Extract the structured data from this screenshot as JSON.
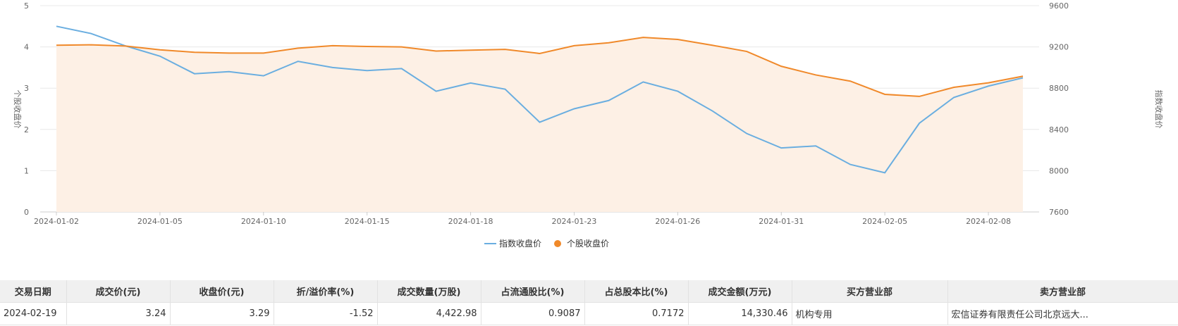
{
  "chart_data": {
    "type": "line",
    "x": [
      "2024-01-02",
      "2024-01-03",
      "2024-01-04",
      "2024-01-05",
      "2024-01-08",
      "2024-01-09",
      "2024-01-10",
      "2024-01-11",
      "2024-01-12",
      "2024-01-15",
      "2024-01-16",
      "2024-01-17",
      "2024-01-18",
      "2024-01-19",
      "2024-01-22",
      "2024-01-23",
      "2024-01-24",
      "2024-01-25",
      "2024-01-26",
      "2024-01-29",
      "2024-01-30",
      "2024-01-31",
      "2024-02-01",
      "2024-02-02",
      "2024-02-05",
      "2024-02-06",
      "2024-02-07",
      "2024-02-08",
      "2024-02-19"
    ],
    "x_ticks": [
      "2024-01-02",
      "2024-01-05",
      "2024-01-10",
      "2024-01-15",
      "2024-01-18",
      "2024-01-23",
      "2024-01-26",
      "2024-01-31",
      "2024-02-05",
      "2024-02-08"
    ],
    "ylabel": "个股收盘价",
    "ylabel_right": "指数收盘价",
    "ylim": [
      0,
      5
    ],
    "ylim_right": [
      7600,
      9600
    ],
    "y_ticks": [
      "0",
      "1",
      "2",
      "3",
      "4",
      "5"
    ],
    "y_ticks_right": [
      "7600",
      "8000",
      "8400",
      "8800",
      "9200",
      "9600"
    ],
    "legend_position": "bottom",
    "grid": true,
    "series": [
      {
        "name": "指数收盘价",
        "axis": "right",
        "color": "#6aaee0",
        "values": [
          9400,
          9330,
          9210,
          9110,
          8940,
          8960,
          8920,
          9060,
          9000,
          8970,
          8990,
          8770,
          8850,
          8790,
          8470,
          8600,
          8680,
          8860,
          8770,
          8580,
          8360,
          8220,
          8240,
          8060,
          7980,
          8460,
          8710,
          8820,
          8900
        ]
      },
      {
        "name": "个股收盘价",
        "axis": "left",
        "color": "#f0892a",
        "area_color": "#fdf0e5",
        "values": [
          4.04,
          4.05,
          4.02,
          3.93,
          3.87,
          3.85,
          3.85,
          3.97,
          4.03,
          4.01,
          4.0,
          3.9,
          3.92,
          3.94,
          3.84,
          4.03,
          4.1,
          4.23,
          4.18,
          4.04,
          3.89,
          3.53,
          3.32,
          3.17,
          2.85,
          2.8,
          3.02,
          3.13,
          3.29
        ]
      }
    ]
  },
  "table": {
    "headers": [
      "交易日期",
      "成交价(元)",
      "收盘价(元)",
      "折/溢价率(%)",
      "成交数量(万股)",
      "占流通股比(%)",
      "占总股本比(%)",
      "成交金额(万元)",
      "买方营业部",
      "卖方营业部"
    ],
    "rows": [
      [
        "2024-02-19",
        "3.24",
        "3.29",
        "-1.52",
        "4,422.98",
        "0.9087",
        "0.7172",
        "14,330.46",
        "机构专用",
        "宏信证券有限责任公司北京远大..."
      ]
    ]
  }
}
